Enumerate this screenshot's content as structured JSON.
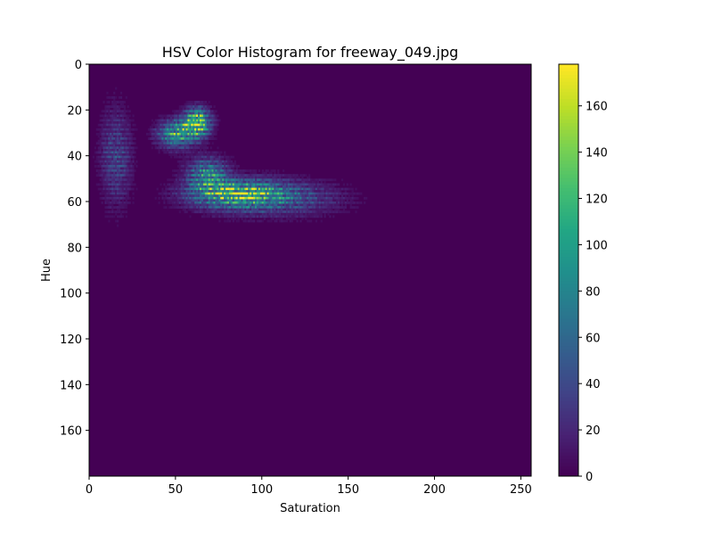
{
  "chart_data": {
    "type": "heatmap",
    "title": "HSV Color Histogram for freeway_049.jpg",
    "xlabel": "Saturation",
    "ylabel": "Hue",
    "xlim": [
      0,
      256
    ],
    "ylim": [
      180,
      0
    ],
    "x_ticks": [
      0,
      50,
      100,
      150,
      200,
      250
    ],
    "y_ticks": [
      0,
      20,
      40,
      60,
      80,
      100,
      120,
      140,
      160
    ],
    "colorbar": {
      "vmin": 0,
      "vmax": 178,
      "ticks": [
        0,
        20,
        40,
        60,
        80,
        100,
        120,
        140,
        160
      ],
      "colormap": "viridis"
    },
    "grid": false,
    "clusters": [
      {
        "hue": 25,
        "sat": 62,
        "peak": 178,
        "sat_spread": 5,
        "hue_spread": 4
      },
      {
        "hue": 30,
        "sat": 50,
        "peak": 120,
        "sat_spread": 7,
        "hue_spread": 4
      },
      {
        "hue": 48,
        "sat": 68,
        "peak": 95,
        "sat_spread": 8,
        "hue_spread": 5
      },
      {
        "hue": 56,
        "sat": 85,
        "peak": 110,
        "sat_spread": 18,
        "hue_spread": 4
      },
      {
        "hue": 58,
        "sat": 105,
        "peak": 60,
        "sat_spread": 25,
        "hue_spread": 5
      },
      {
        "hue": 40,
        "sat": 15,
        "peak": 45,
        "sat_spread": 6,
        "hue_spread": 14
      }
    ]
  }
}
